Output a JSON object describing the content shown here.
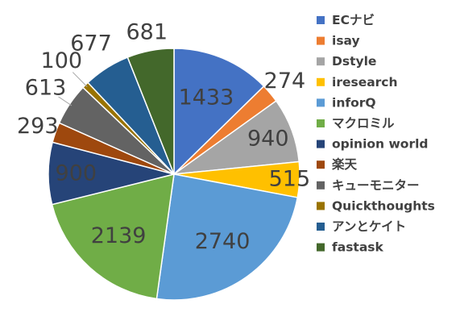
{
  "chart_data": {
    "type": "pie",
    "title": "",
    "legend_position": "right",
    "start_angle_deg": 0,
    "direction": "clockwise",
    "series": [
      {
        "name": "ECナビ",
        "value": 1433,
        "label": "1433",
        "color": "#4472C4"
      },
      {
        "name": "isay",
        "value": 274,
        "label": "274",
        "color": "#ED7D31"
      },
      {
        "name": "Dstyle",
        "value": 940,
        "label": "940",
        "color": "#A5A5A5"
      },
      {
        "name": "iresearch",
        "value": 515,
        "label": "515",
        "color": "#FFC000"
      },
      {
        "name": "inforQ",
        "value": 2740,
        "label": "2740",
        "color": "#5B9BD5"
      },
      {
        "name": "マクロミル",
        "value": 2139,
        "label": "2139",
        "color": "#70AD47"
      },
      {
        "name": "opinion world",
        "value": 900,
        "label": "900",
        "color": "#264478"
      },
      {
        "name": "楽天",
        "value": 293,
        "label": "293",
        "color": "#9E480E"
      },
      {
        "name": "キューモニター",
        "value": 613,
        "label": "613",
        "color": "#636363"
      },
      {
        "name": "Quickthoughts",
        "value": 100,
        "label": "100",
        "color": "#997300"
      },
      {
        "name": "アンとケイト",
        "value": 677,
        "label": "677",
        "color": "#255E91"
      },
      {
        "name": "fastask",
        "value": 681,
        "label": "681",
        "color": "#43682B"
      }
    ]
  }
}
